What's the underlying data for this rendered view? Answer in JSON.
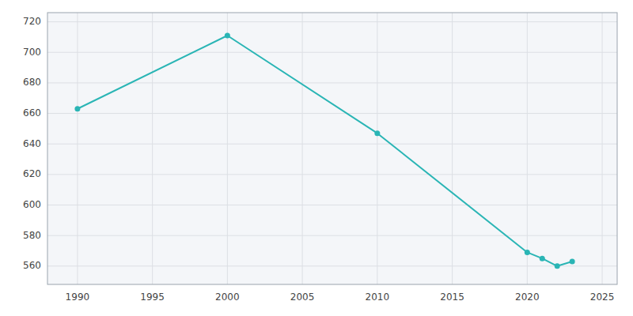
{
  "chart_data": {
    "type": "line",
    "x": [
      1990,
      2000,
      2010,
      2020,
      2021,
      2022,
      2023
    ],
    "values": [
      663,
      711,
      647,
      569,
      565,
      560,
      563
    ],
    "color": "#2ab5b5",
    "marker": "circle",
    "xlim": [
      1988,
      2026
    ],
    "ylim": [
      548,
      726
    ],
    "xticks": [
      1990,
      1995,
      2000,
      2005,
      2010,
      2015,
      2020,
      2025
    ],
    "yticks": [
      560,
      580,
      600,
      620,
      640,
      660,
      680,
      700,
      720
    ],
    "grid": true
  }
}
